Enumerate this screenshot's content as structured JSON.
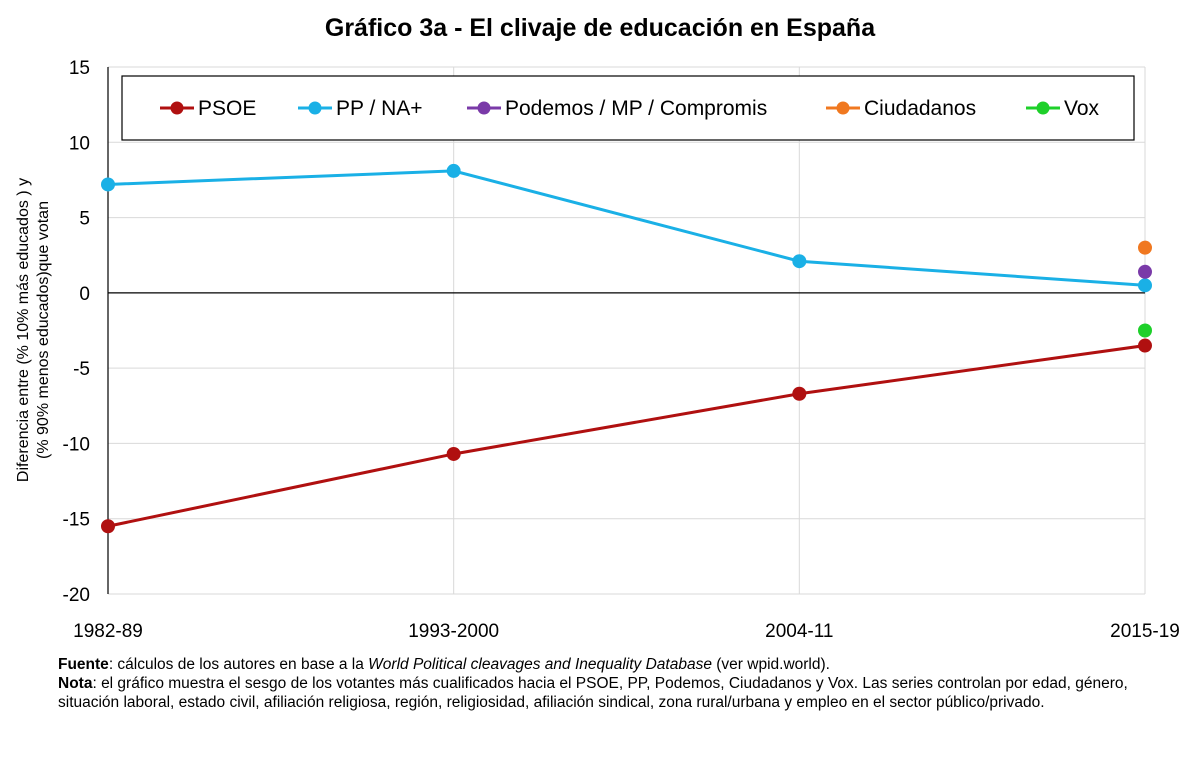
{
  "chart_data": {
    "type": "line",
    "title": "Gráfico 3a - El clivaje de educación en España",
    "ylabel_line1": "Diferencia entre (% 10% más educados ) y",
    "ylabel_line2": "(% 90% menos educados)que votan",
    "categories": [
      "1982-89",
      "1993-2000",
      "2004-11",
      "2015-19"
    ],
    "ylim": [
      -20,
      15
    ],
    "yticks": [
      15,
      10,
      5,
      0,
      -5,
      -10,
      -15,
      -20
    ],
    "grid": true,
    "legend_position": "top",
    "series": [
      {
        "name": "PSOE",
        "color": "#b01010",
        "values": [
          -15.5,
          -10.7,
          -6.7,
          -3.5
        ]
      },
      {
        "name": "PP / NA+",
        "color": "#1ab0e6",
        "values": [
          7.2,
          8.1,
          2.1,
          0.5
        ]
      },
      {
        "name": "Podemos / MP / Compromis",
        "color": "#7a3aa8",
        "values": [
          null,
          null,
          null,
          1.4
        ]
      },
      {
        "name": "Ciudadanos",
        "color": "#f07820",
        "values": [
          null,
          null,
          null,
          3.0
        ]
      },
      {
        "name": "Vox",
        "color": "#1ed02a",
        "values": [
          null,
          null,
          null,
          -2.5
        ]
      }
    ]
  },
  "notes": {
    "source_label": "Fuente",
    "source_pre": ": cálculos de los autores en base a la ",
    "source_db": "World Political cleavages and Inequality Database",
    "source_post": " (ver wpid.world).",
    "note_label": "Nota",
    "note_text": ": el gráfico muestra el sesgo de los votantes más cualificados hacia el PSOE, PP, Podemos, Ciudadanos y Vox. Las series controlan por edad, género, situación laboral, estado civil, afiliación religiosa, región, religiosidad, afiliación sindical, zona rural/urbana y empleo en el sector público/privado."
  }
}
